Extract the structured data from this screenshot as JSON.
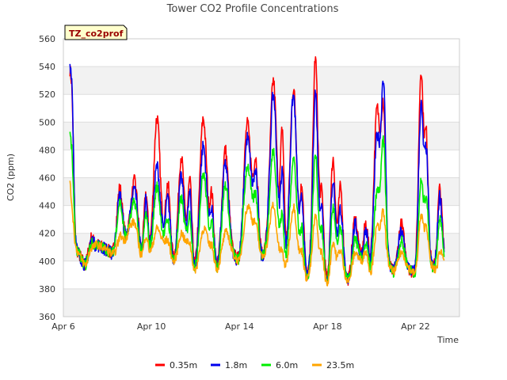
{
  "chart_data": {
    "type": "line",
    "title": "Tower CO2 Profile Concentrations",
    "tag": "TZ_co2prof",
    "xlabel": "Time",
    "ylabel": "CO2 (ppm)",
    "ylim": [
      360,
      560
    ],
    "yticks": [
      360,
      380,
      400,
      420,
      440,
      460,
      480,
      500,
      520,
      540,
      560
    ],
    "xlim": [
      6,
      24
    ],
    "xticks": [
      {
        "value": 6,
        "label": "Apr 6"
      },
      {
        "value": 10,
        "label": "Apr 10"
      },
      {
        "value": 14,
        "label": "Apr 14"
      },
      {
        "value": 18,
        "label": "Apr 18"
      },
      {
        "value": 22,
        "label": "Apr 22"
      }
    ],
    "grid": true,
    "legend_position": "bottom",
    "baseline": [
      {
        "x": 6.3,
        "y": 445
      },
      {
        "x": 6.55,
        "y": 410
      },
      {
        "x": 7.0,
        "y": 396
      },
      {
        "x": 7.5,
        "y": 412
      },
      {
        "x": 8.0,
        "y": 408
      },
      {
        "x": 8.5,
        "y": 400
      },
      {
        "x": 9.0,
        "y": 422
      },
      {
        "x": 9.5,
        "y": 402
      },
      {
        "x": 10.0,
        "y": 405
      },
      {
        "x": 10.5,
        "y": 412
      },
      {
        "x": 11.0,
        "y": 398
      },
      {
        "x": 11.6,
        "y": 410
      },
      {
        "x": 12.0,
        "y": 390
      },
      {
        "x": 12.5,
        "y": 408
      },
      {
        "x": 13.0,
        "y": 393
      },
      {
        "x": 13.5,
        "y": 410
      },
      {
        "x": 14.0,
        "y": 398
      },
      {
        "x": 14.5,
        "y": 420
      },
      {
        "x": 15.0,
        "y": 402
      },
      {
        "x": 15.5,
        "y": 412
      },
      {
        "x": 16.0,
        "y": 388
      },
      {
        "x": 16.5,
        "y": 400
      },
      {
        "x": 17.0,
        "y": 386
      },
      {
        "x": 17.5,
        "y": 398
      },
      {
        "x": 18.0,
        "y": 382
      },
      {
        "x": 18.5,
        "y": 395
      },
      {
        "x": 19.0,
        "y": 384
      },
      {
        "x": 19.5,
        "y": 398
      },
      {
        "x": 20.0,
        "y": 386
      },
      {
        "x": 20.5,
        "y": 402
      },
      {
        "x": 21.0,
        "y": 392
      },
      {
        "x": 21.5,
        "y": 398
      },
      {
        "x": 22.0,
        "y": 390
      },
      {
        "x": 22.5,
        "y": 404
      },
      {
        "x": 23.0,
        "y": 388
      },
      {
        "x": 23.3,
        "y": 400
      }
    ],
    "peaks": [
      {
        "x": 6.25,
        "s": 0.12,
        "amp": [
          80,
          82,
          40,
          10
        ]
      },
      {
        "x": 6.4,
        "s": 0.1,
        "amp": [
          70,
          75,
          35,
          5
        ]
      },
      {
        "x": 7.25,
        "s": 0.15,
        "amp": [
          12,
          10,
          8,
          5
        ]
      },
      {
        "x": 8.55,
        "s": 0.18,
        "amp": [
          50,
          45,
          40,
          15
        ]
      },
      {
        "x": 9.25,
        "s": 0.2,
        "amp": [
          45,
          40,
          30,
          15
        ]
      },
      {
        "x": 9.75,
        "s": 0.12,
        "amp": [
          45,
          40,
          30,
          15
        ]
      },
      {
        "x": 10.25,
        "s": 0.2,
        "amp": [
          95,
          60,
          45,
          15
        ]
      },
      {
        "x": 10.75,
        "s": 0.15,
        "amp": [
          50,
          40,
          25,
          10
        ]
      },
      {
        "x": 11.35,
        "s": 0.18,
        "amp": [
          70,
          55,
          40,
          15
        ]
      },
      {
        "x": 11.75,
        "s": 0.12,
        "amp": [
          55,
          45,
          30,
          10
        ]
      },
      {
        "x": 12.35,
        "s": 0.22,
        "amp": [
          100,
          80,
          60,
          20
        ]
      },
      {
        "x": 12.75,
        "s": 0.12,
        "amp": [
          45,
          35,
          25,
          10
        ]
      },
      {
        "x": 13.35,
        "s": 0.2,
        "amp": [
          75,
          65,
          50,
          15
        ]
      },
      {
        "x": 14.35,
        "s": 0.22,
        "amp": [
          85,
          75,
          55,
          25
        ]
      },
      {
        "x": 14.75,
        "s": 0.15,
        "amp": [
          60,
          50,
          35,
          15
        ]
      },
      {
        "x": 15.55,
        "s": 0.22,
        "amp": [
          120,
          110,
          70,
          30
        ]
      },
      {
        "x": 15.95,
        "s": 0.12,
        "amp": [
          100,
          70,
          40,
          15
        ]
      },
      {
        "x": 16.45,
        "s": 0.22,
        "amp": [
          125,
          120,
          75,
          40
        ]
      },
      {
        "x": 16.85,
        "s": 0.12,
        "amp": [
          60,
          50,
          30,
          15
        ]
      },
      {
        "x": 17.45,
        "s": 0.16,
        "amp": [
          150,
          125,
          80,
          35
        ]
      },
      {
        "x": 17.75,
        "s": 0.12,
        "amp": [
          55,
          45,
          30,
          15
        ]
      },
      {
        "x": 18.25,
        "s": 0.15,
        "amp": [
          85,
          70,
          50,
          25
        ]
      },
      {
        "x": 18.6,
        "s": 0.14,
        "amp": [
          60,
          45,
          30,
          15
        ]
      },
      {
        "x": 19.25,
        "s": 0.18,
        "amp": [
          40,
          35,
          25,
          15
        ]
      },
      {
        "x": 19.75,
        "s": 0.15,
        "amp": [
          35,
          30,
          20,
          15
        ]
      },
      {
        "x": 20.25,
        "s": 0.2,
        "amp": [
          115,
          95,
          55,
          30
        ]
      },
      {
        "x": 20.55,
        "s": 0.14,
        "amp": [
          100,
          120,
          80,
          30
        ]
      },
      {
        "x": 21.35,
        "s": 0.18,
        "amp": [
          30,
          25,
          18,
          10
        ]
      },
      {
        "x": 22.25,
        "s": 0.15,
        "amp": [
          140,
          115,
          60,
          35
        ]
      },
      {
        "x": 22.5,
        "s": 0.12,
        "amp": [
          80,
          70,
          40,
          20
        ]
      },
      {
        "x": 23.1,
        "s": 0.15,
        "amp": [
          60,
          55,
          40,
          15
        ]
      }
    ],
    "series": [
      {
        "name": "0.35m",
        "color": "#ff0000"
      },
      {
        "name": "1.8m",
        "color": "#0000ee"
      },
      {
        "name": "6.0m",
        "color": "#00ee00"
      },
      {
        "name": "23.5m",
        "color": "#ffa500"
      }
    ]
  }
}
